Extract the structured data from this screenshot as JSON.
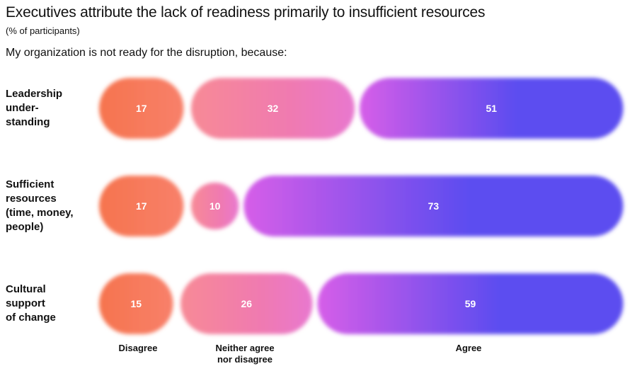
{
  "chart_data": {
    "type": "bar",
    "stacked": true,
    "orientation": "horizontal",
    "title": "Executives attribute the lack of readiness primarily to insufficient resources",
    "subtitle": "(% of participants)",
    "question": "My organization is not ready for the disruption, because:",
    "categories": [
      "Leadership under-standing",
      "Sufficient resources (time, money, people)",
      "Cultural support of change"
    ],
    "category_lines": [
      [
        "Leadership",
        "under-",
        "standing"
      ],
      [
        "Sufficient",
        "resources",
        "(time, money,",
        "people)"
      ],
      [
        "Cultural",
        "support",
        "of change"
      ]
    ],
    "series": [
      {
        "name": "Disagree",
        "values": [
          17,
          17,
          15
        ]
      },
      {
        "name": "Neither agree nor disagree",
        "values": [
          32,
          10,
          26
        ]
      },
      {
        "name": "Agree",
        "values": [
          51,
          73,
          59
        ]
      }
    ],
    "series_label_lines": [
      [
        "Disagree"
      ],
      [
        "Neither agree",
        "nor disagree"
      ],
      [
        "Agree"
      ]
    ],
    "colors": {
      "disagree": "#f6744e",
      "neither": "#f07ab0",
      "neither_end": "#e878cf",
      "agree_start": "#d65ee8",
      "agree": "#5b4df0"
    },
    "xlim": [
      0,
      100
    ]
  }
}
